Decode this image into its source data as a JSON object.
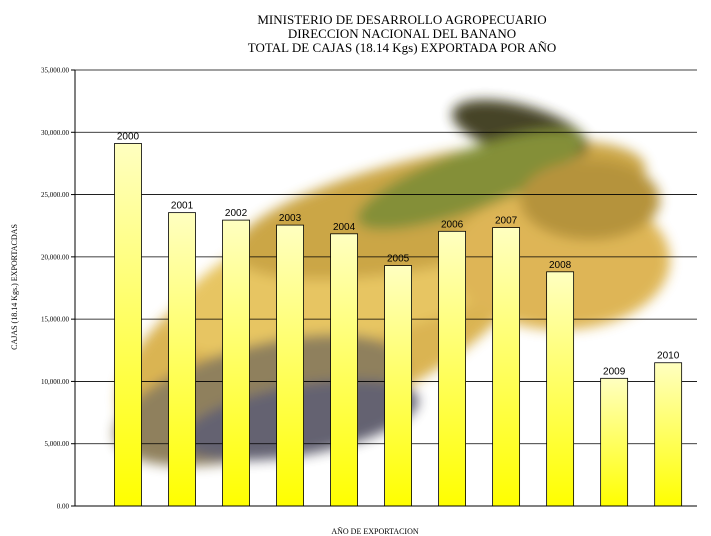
{
  "chart_data": {
    "type": "bar",
    "title_lines": [
      "MINISTERIO DE DESARROLLO AGROPECUARIO",
      "DIRECCION NACIONAL DEL BANANO",
      "TOTAL DE CAJAS (18.14 Kgs) EXPORTADA POR AÑO"
    ],
    "xlabel": "AÑO DE EXPORTACION",
    "ylabel": "CAJAS (18.14 Kgs.) EXPORTACDAS",
    "ylim": [
      0,
      35000
    ],
    "yticks": [
      "0.00",
      "5,000.00",
      "10,000.00",
      "15,000.00",
      "20,000.00",
      "25,000.00",
      "30,000.00",
      "35,000.00"
    ],
    "grid": true,
    "categories": [
      "2000",
      "2001",
      "2002",
      "2003",
      "2004",
      "2005",
      "2006",
      "2007",
      "2008",
      "2009",
      "2010"
    ],
    "values": [
      29100,
      23550,
      22950,
      22550,
      21850,
      19300,
      22050,
      22350,
      18800,
      10250,
      11500
    ],
    "bar_color_top": "#ffffc0",
    "bar_color_bottom": "#ffff00",
    "background_image": "bananas-photo"
  }
}
